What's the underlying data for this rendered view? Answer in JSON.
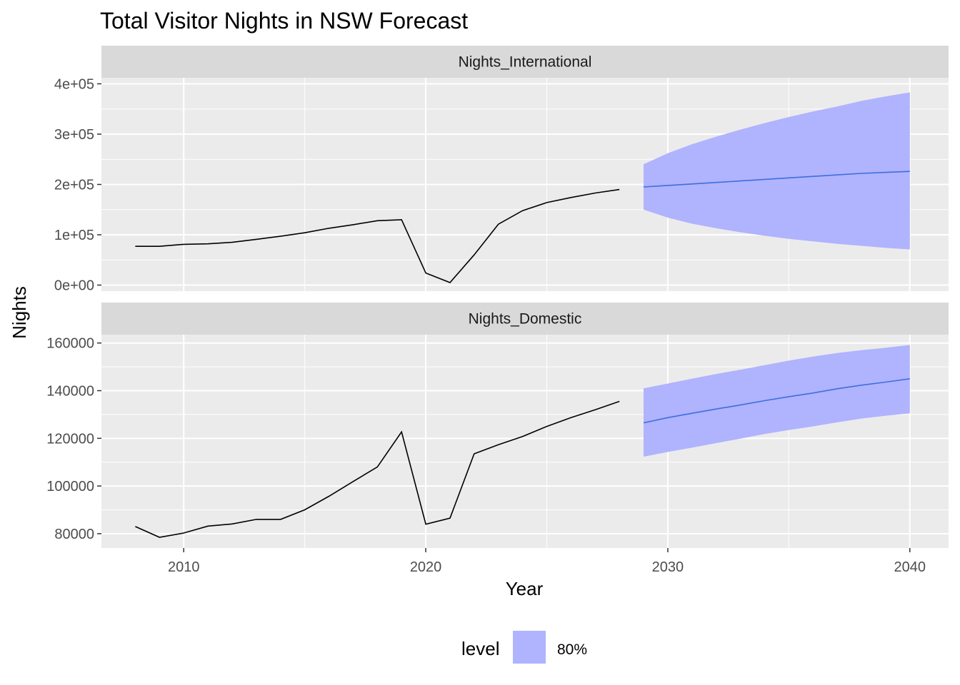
{
  "chart_data": {
    "type": "line",
    "title": "Total Visitor Nights in NSW Forecast",
    "xlabel": "Year",
    "ylabel": "Nights",
    "xlim": [
      2006.6,
      2041.6
    ],
    "x_ticks": [
      2010,
      2020,
      2030,
      2040
    ],
    "x_tick_labels": [
      "2010",
      "2020",
      "2030",
      "2040"
    ],
    "grid": true,
    "legend": {
      "title": "level",
      "position": "bottom",
      "entries": [
        {
          "label": "80%",
          "color": "#b0b3fd"
        }
      ]
    },
    "colors": {
      "history": "#000000",
      "forecast": "#3e6ee0",
      "interval": "#b0b3fd",
      "panel": "#ebebeb",
      "strip": "#d9d9d9"
    },
    "panels": [
      {
        "strip": "Nights_International",
        "ylim": [
          -12000,
          412000
        ],
        "y_ticks": [
          0,
          100000,
          200000,
          300000,
          400000
        ],
        "y_tick_labels": [
          "0e+00",
          "1e+05",
          "2e+05",
          "3e+05",
          "4e+05"
        ],
        "history": {
          "x": [
            2008,
            2009,
            2010,
            2011,
            2012,
            2013,
            2014,
            2015,
            2016,
            2017,
            2018,
            2019,
            2020,
            2021,
            2022,
            2023,
            2024,
            2025,
            2026,
            2027,
            2028
          ],
          "y": [
            77000,
            77000,
            81000,
            82000,
            85000,
            91000,
            97000,
            104000,
            113000,
            120000,
            128000,
            130000,
            24000,
            5000,
            60000,
            121000,
            148000,
            164000,
            174000,
            183000,
            190000
          ]
        },
        "forecast": {
          "x": [
            2029,
            2030,
            2031,
            2032,
            2033,
            2034,
            2035,
            2036,
            2037,
            2038,
            2039,
            2040
          ],
          "mean": [
            195000,
            198000,
            201000,
            204000,
            207000,
            210000,
            213000,
            216000,
            219000,
            222000,
            224000,
            226000
          ],
          "lower": [
            150000,
            134000,
            122000,
            113000,
            105000,
            98000,
            92000,
            87000,
            82000,
            78000,
            74000,
            71000
          ],
          "upper": [
            240000,
            262000,
            280000,
            295000,
            309000,
            322000,
            334000,
            345000,
            355000,
            366000,
            375000,
            383000
          ]
        }
      },
      {
        "strip": "Nights_Domestic",
        "ylim": [
          74000,
          163500
        ],
        "y_ticks": [
          80000,
          100000,
          120000,
          140000,
          160000
        ],
        "y_tick_labels": [
          "80000",
          "100000",
          "120000",
          "140000",
          "160000"
        ],
        "history": {
          "x": [
            2008,
            2009,
            2010,
            2011,
            2012,
            2013,
            2014,
            2015,
            2016,
            2017,
            2018,
            2019,
            2020,
            2021,
            2022,
            2023,
            2024,
            2025,
            2026,
            2027,
            2028
          ],
          "y": [
            83000,
            78500,
            80300,
            83200,
            84100,
            86000,
            86000,
            90000,
            95700,
            101900,
            108000,
            122700,
            84000,
            86500,
            113500,
            117300,
            120800,
            125000,
            128700,
            132000,
            135500
          ]
        },
        "forecast": {
          "x": [
            2029,
            2030,
            2031,
            2032,
            2033,
            2034,
            2035,
            2036,
            2037,
            2038,
            2039,
            2040
          ],
          "mean": [
            126500,
            128700,
            130500,
            132300,
            134000,
            135800,
            137500,
            139000,
            140800,
            142300,
            143600,
            145000
          ],
          "lower": [
            112300,
            114300,
            116100,
            118000,
            119900,
            121800,
            123500,
            125000,
            126700,
            128300,
            129500,
            130500
          ],
          "upper": [
            141000,
            143000,
            145000,
            147000,
            148800,
            150700,
            152600,
            154300,
            155800,
            157000,
            158000,
            159200
          ]
        }
      }
    ]
  }
}
